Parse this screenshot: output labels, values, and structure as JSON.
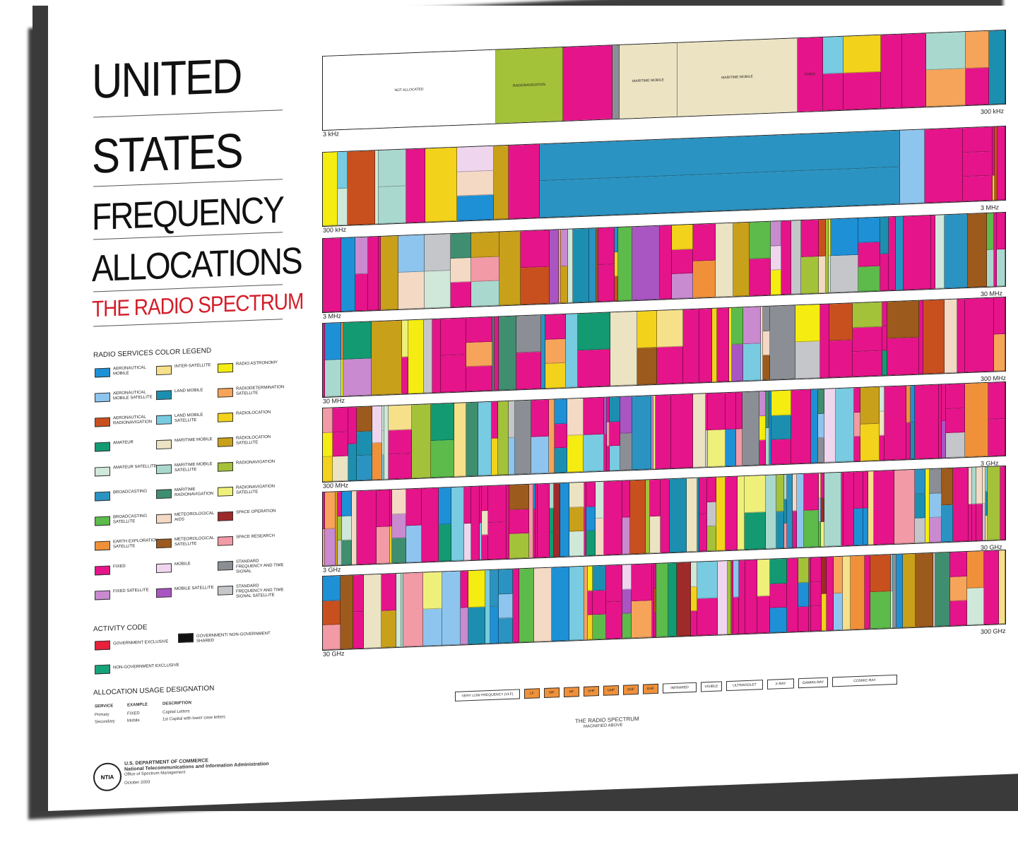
{
  "title": {
    "line1": "UNITED",
    "line2": "STATES",
    "line3": "FREQUENCY",
    "line4": "ALLOCATIONS",
    "subtitle": "THE RADIO SPECTRUM"
  },
  "legend": {
    "heading": "RADIO SERVICES COLOR LEGEND",
    "items": [
      {
        "label": "AERONAUTICAL MOBILE",
        "color": "#1e90d6"
      },
      {
        "label": "INTER-SATELLITE",
        "color": "#f7e08a"
      },
      {
        "label": "RADIO ASTRONOMY",
        "color": "#f5ec12"
      },
      {
        "label": "AERONAUTICAL MOBILE SATELLITE",
        "color": "#8ec5ef"
      },
      {
        "label": "LAND MOBILE",
        "color": "#1c8fb0"
      },
      {
        "label": "RADIODETERMINATION SATELLITE",
        "color": "#f6a45a"
      },
      {
        "label": "AERONAUTICAL RADIONAVIGATION",
        "color": "#c8501e"
      },
      {
        "label": "LAND MOBILE SATELLITE",
        "color": "#78cbe0"
      },
      {
        "label": "RADIOLOCATION",
        "color": "#f3d21c"
      },
      {
        "label": "AMATEUR",
        "color": "#139a72"
      },
      {
        "label": "MARITIME MOBILE",
        "color": "#ece3c2"
      },
      {
        "label": "RADIOLOCATION SATELLITE",
        "color": "#c9a01a"
      },
      {
        "label": "AMATEUR SATELLITE",
        "color": "#cfe8d9"
      },
      {
        "label": "MARITIME MOBILE SATELLITE",
        "color": "#a9d8ce"
      },
      {
        "label": "RADIONAVIGATION",
        "color": "#a4c13a"
      },
      {
        "label": "BROADCASTING",
        "color": "#2b93c2"
      },
      {
        "label": "MARITIME RADIONAVIGATION",
        "color": "#3f8e6f"
      },
      {
        "label": "RADIONAVIGATION SATELLITE",
        "color": "#eef07a"
      },
      {
        "label": "BROADCASTING SATELLITE",
        "color": "#5cbb4a"
      },
      {
        "label": "METEOROLOGICAL AIDS",
        "color": "#f4d9c4"
      },
      {
        "label": "SPACE OPERATION",
        "color": "#9e2a2a"
      },
      {
        "label": "EARTH EXPLORATION SATELLITE",
        "color": "#f0913a"
      },
      {
        "label": "METEOROLOGICAL SATELLITE",
        "color": "#9c5a1c"
      },
      {
        "label": "SPACE RESEARCH",
        "color": "#f29aa6"
      },
      {
        "label": "FIXED",
        "color": "#e5148a"
      },
      {
        "label": "MOBILE",
        "color": "#efd6ee"
      },
      {
        "label": "STANDARD FREQUENCY AND TIME SIGNAL",
        "color": "#8b8f95"
      },
      {
        "label": "FIXED SATELLITE",
        "color": "#c98ad0"
      },
      {
        "label": "MOBILE SATELLITE",
        "color": "#a955c2"
      },
      {
        "label": "STANDARD FREQUENCY AND TIME SIGNAL SATELLITE",
        "color": "#c4c6c9"
      }
    ]
  },
  "activity": {
    "heading": "ACTIVITY CODE",
    "items": [
      {
        "label": "GOVERNMENT EXCLUSIVE",
        "color": "#e8203a"
      },
      {
        "label": "GOVERNMENT/ NON-GOVERNMENT SHARED",
        "color": "#111111"
      },
      {
        "label": "NON-GOVERNMENT EXCLUSIVE",
        "color": "#16a37a"
      }
    ]
  },
  "usage": {
    "heading": "ALLOCATION USAGE DESIGNATION",
    "columns": [
      "SERVICE",
      "EXAMPLE",
      "DESCRIPTION"
    ],
    "rows": [
      [
        "Primary",
        "FIXED",
        "Capital Letters"
      ],
      [
        "Secondary",
        "Mobile",
        "1st Capital with lower case letters"
      ]
    ]
  },
  "footer": {
    "dept": "U.S. DEPARTMENT OF COMMERCE",
    "agency": "National Telecommunications and Information Administration",
    "office": "Office of Spectrum Management",
    "date": "October 2003",
    "logo": "NTIA"
  },
  "bands": [
    {
      "start": "3 kHz",
      "end": "300 kHz"
    },
    {
      "start": "300 kHz",
      "end": "3 MHz"
    },
    {
      "start": "3 MHz",
      "end": "30 MHz"
    },
    {
      "start": "30 MHz",
      "end": "300 MHz"
    },
    {
      "start": "300 MHz",
      "end": "3 GHz"
    },
    {
      "start": "3 GHz",
      "end": "30 GHz"
    },
    {
      "start": "30 GHz",
      "end": "300 GHz"
    }
  ],
  "band1_labels": [
    "NOT ALLOCATED",
    "RADIONAVIGATION",
    "MARITIME MOBILE",
    "MARITIME MOBILE",
    "FIXED"
  ],
  "spectrum": {
    "caption": "THE RADIO SPECTRUM",
    "sub": "MAGNIFIED ABOVE",
    "labels": [
      "VERY LOW FREQUENCY (VLF)",
      "LF",
      "MF",
      "HF",
      "VHF",
      "UHF",
      "SHF",
      "EHF",
      "INFRARED",
      "VISIBLE",
      "ULTRAVIOLET",
      "X-RAY",
      "GAMMA-RAY",
      "COSMIC-RAY"
    ]
  }
}
